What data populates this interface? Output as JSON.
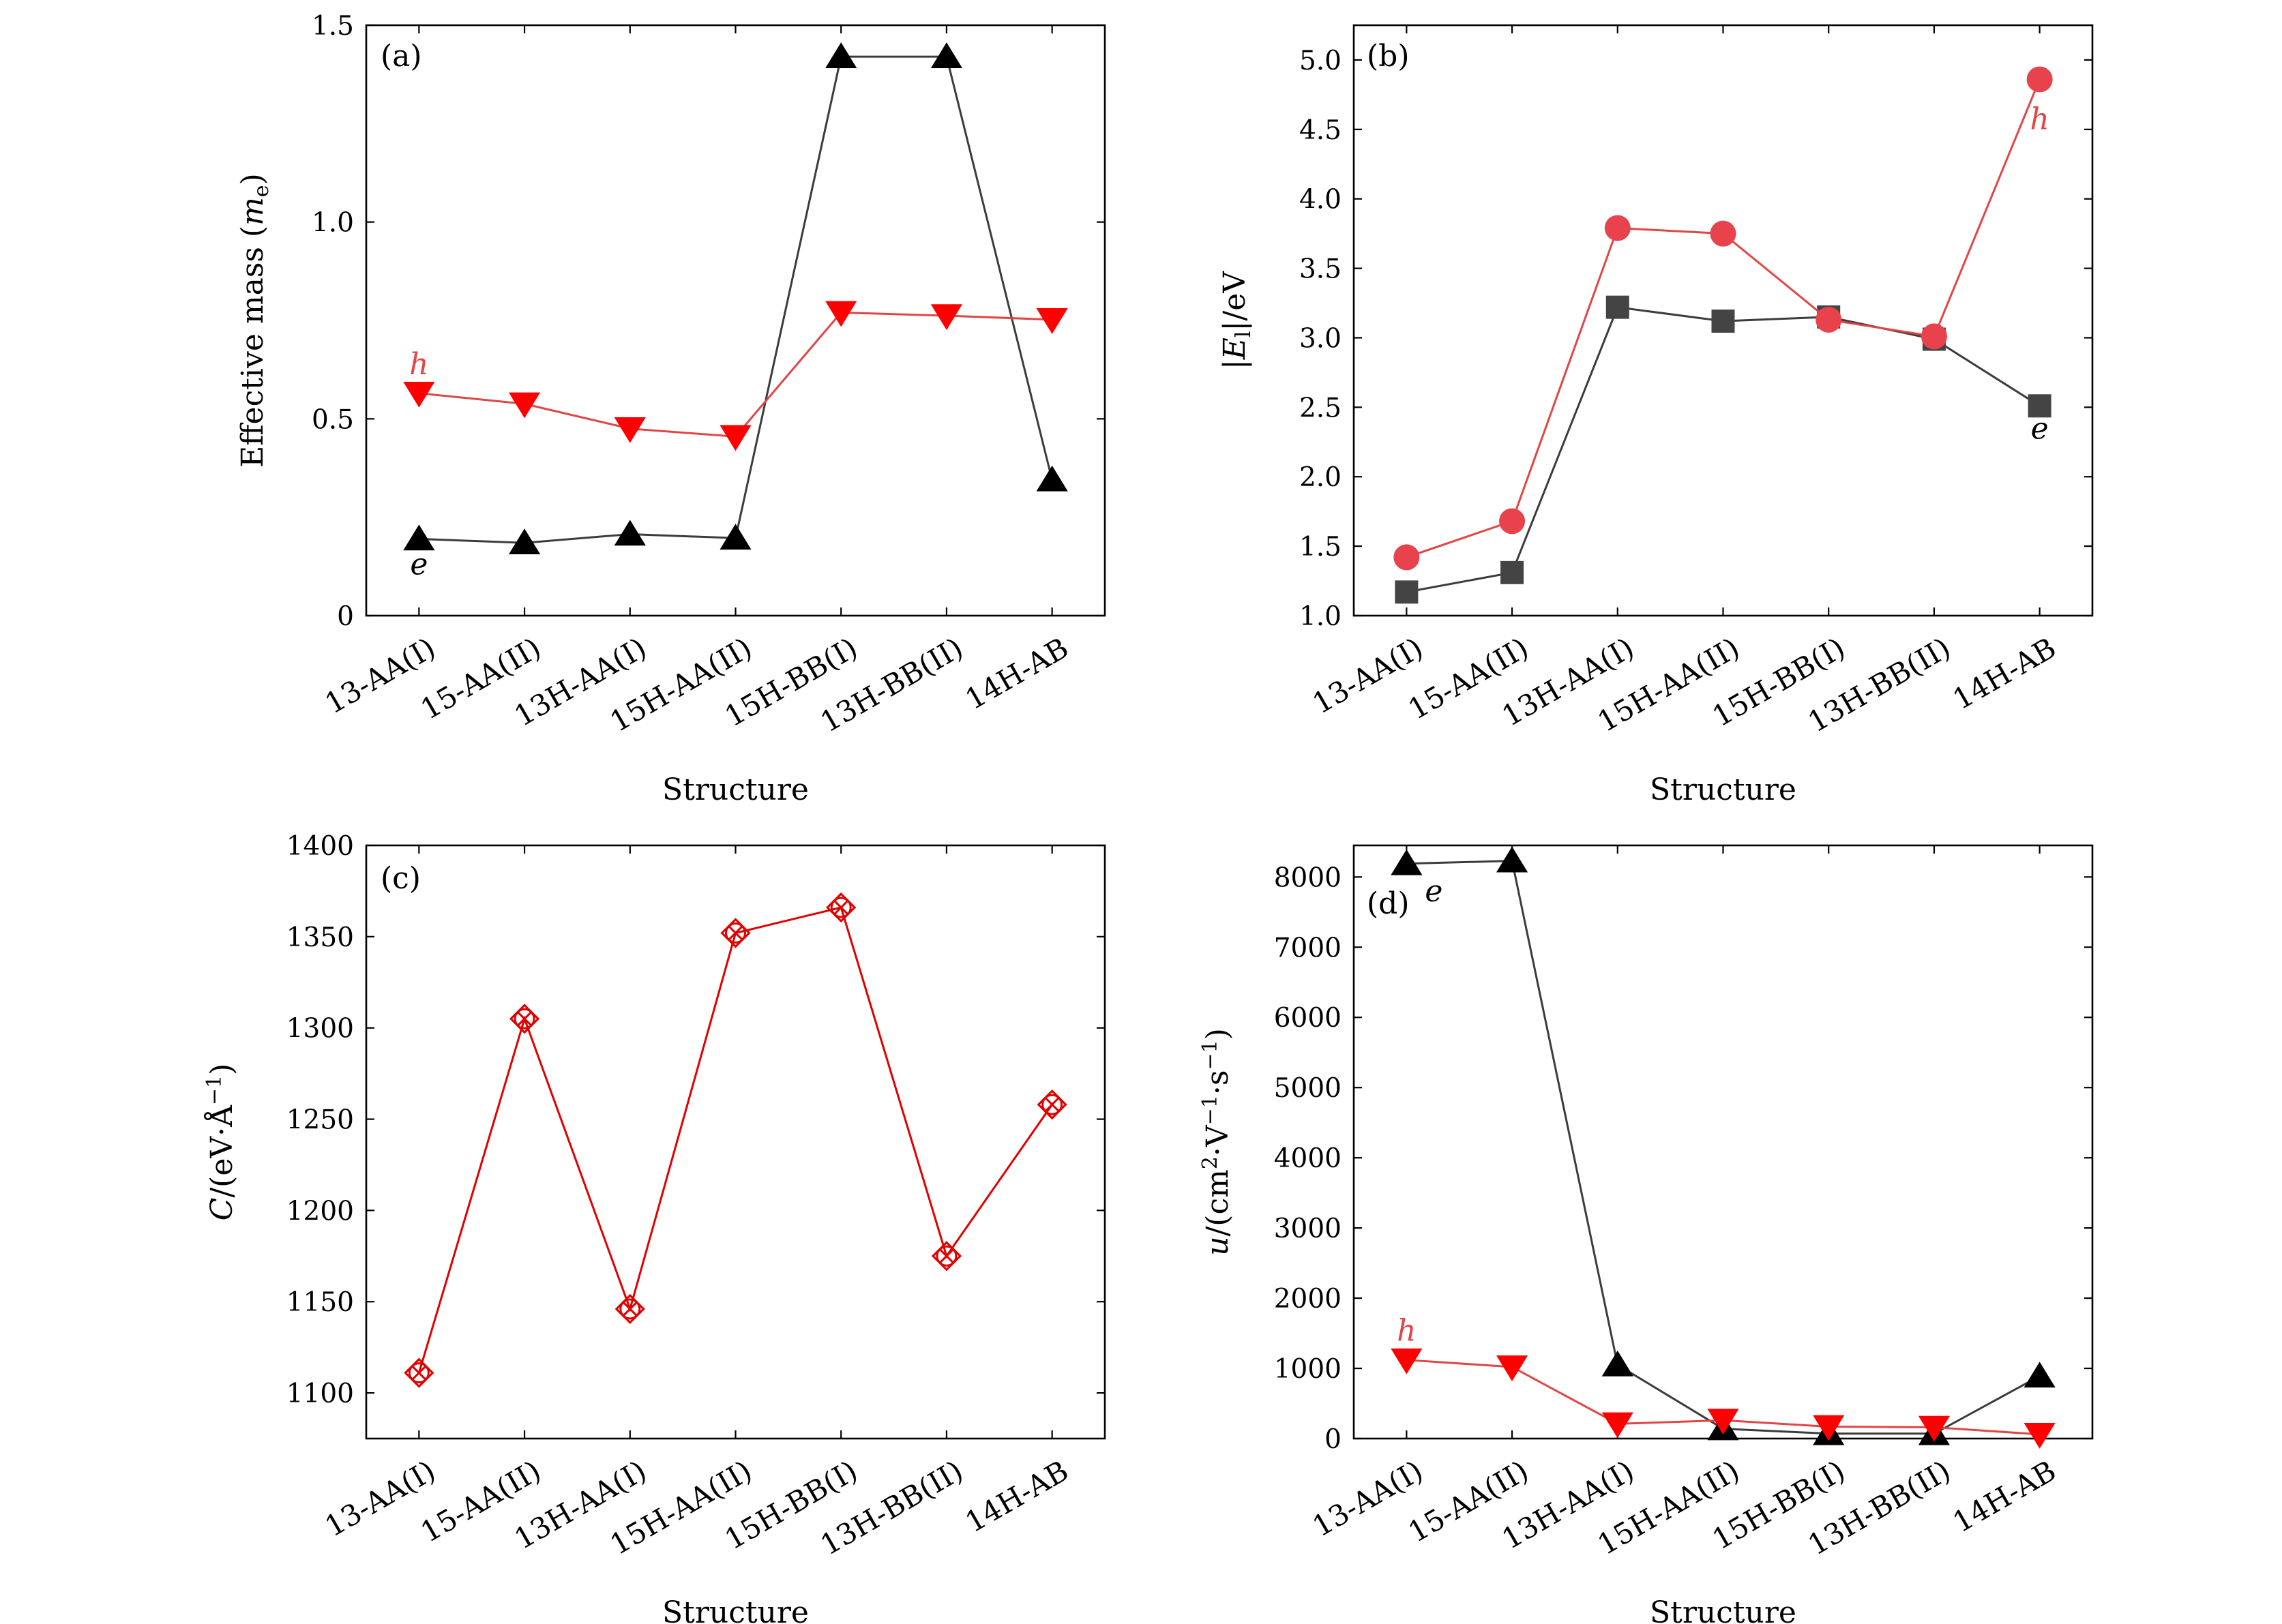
{
  "chart_data": [
    {
      "type": "line",
      "panel": "(a)",
      "categories": [
        "13-AA(I)",
        "15-AA(II)",
        "13H-AA(I)",
        "15H-AA(II)",
        "15H-BB(I)",
        "13H-BB(II)",
        "14H-AB"
      ],
      "xlabel": "Structure",
      "ylabel": "Effective mass (m_e)",
      "ylabel_parts": {
        "main": "Effective mass (",
        "var": "m",
        "sub": "e",
        "close": ")"
      },
      "ylim": [
        0,
        1.5
      ],
      "yticks": [
        0,
        0.5,
        1.0,
        1.5
      ],
      "ytick_labels": [
        "0",
        "0.5",
        "1.0",
        "1.5"
      ],
      "grid": false,
      "series": [
        {
          "name": "e",
          "color": "#3c3c3c",
          "marker": "triangle-up",
          "marker_color": "#000000",
          "values": [
            0.195,
            0.185,
            0.207,
            0.197,
            1.42,
            1.42,
            0.345
          ]
        },
        {
          "name": "h",
          "color": "#e04646",
          "marker": "triangle-down",
          "marker_color": "#ff0000",
          "values": [
            0.565,
            0.538,
            0.475,
            0.455,
            0.77,
            0.762,
            0.752
          ]
        }
      ]
    },
    {
      "type": "line",
      "panel": "(b)",
      "categories": [
        "13-AA(I)",
        "15-AA(II)",
        "13H-AA(I)",
        "15H-AA(II)",
        "15H-BB(I)",
        "13H-BB(II)",
        "14H-AB"
      ],
      "xlabel": "Structure",
      "ylabel": "|E_l|/eV",
      "ylabel_parts": {
        "pre": "|",
        "var": "E",
        "sub": "l",
        "post": "|/eV"
      },
      "ylim": [
        1.0,
        5.25
      ],
      "yticks": [
        1.0,
        1.5,
        2.0,
        2.5,
        3.0,
        3.5,
        4.0,
        4.5,
        5.0
      ],
      "ytick_labels": [
        "1.0",
        "1.5",
        "2.0",
        "2.5",
        "3.0",
        "3.5",
        "4.0",
        "4.5",
        "5.0"
      ],
      "grid": false,
      "series": [
        {
          "name": "e",
          "color": "#3c3c3c",
          "marker": "square",
          "marker_color": "#444444",
          "values": [
            1.17,
            1.31,
            3.22,
            3.12,
            3.15,
            2.99,
            2.51
          ]
        },
        {
          "name": "h",
          "color": "#e04646",
          "marker": "circle",
          "marker_color": "#e8434d",
          "values": [
            1.42,
            1.68,
            3.79,
            3.75,
            3.13,
            3.01,
            4.86
          ]
        }
      ]
    },
    {
      "type": "line",
      "panel": "(c)",
      "categories": [
        "13-AA(I)",
        "15-AA(II)",
        "13H-AA(I)",
        "15H-AA(II)",
        "15H-BB(I)",
        "13H-BB(II)",
        "14H-AB"
      ],
      "xlabel": "Structure",
      "ylabel": "C/(eV·Å^-1)",
      "ylabel_parts": {
        "var": "C",
        "main": "/(eV·Å",
        "sup": "−1",
        "close": ")"
      },
      "ylim": [
        1075,
        1400
      ],
      "yticks": [
        1100,
        1150,
        1200,
        1250,
        1300,
        1350,
        1400
      ],
      "ytick_labels": [
        "1100",
        "1150",
        "1200",
        "1250",
        "1300",
        "1350",
        "1400"
      ],
      "grid": false,
      "series": [
        {
          "color": "#e00000",
          "marker": "crossed-diamond",
          "marker_color": "#e00000",
          "values": [
            1111,
            1305,
            1146,
            1352,
            1366,
            1175,
            1258
          ]
        }
      ]
    },
    {
      "type": "line",
      "panel": "(d)",
      "categories": [
        "13-AA(I)",
        "15-AA(II)",
        "13H-AA(I)",
        "15H-AA(II)",
        "15H-BB(I)",
        "13H-BB(II)",
        "14H-AB"
      ],
      "xlabel": "Structure",
      "ylabel": "u/(cm^2·V^-1·s^-1)",
      "ylabel_parts": {
        "var": "u",
        "p1": "/(cm",
        "s1": "2",
        "p2": "·V",
        "s2": "−1",
        "p3": "·s",
        "s3": "−1",
        "p4": ")"
      },
      "ylim": [
        0,
        8450
      ],
      "yticks": [
        0,
        1000,
        2000,
        3000,
        4000,
        5000,
        6000,
        7000,
        8000
      ],
      "ytick_labels": [
        "0",
        "1000",
        "2000",
        "3000",
        "4000",
        "5000",
        "6000",
        "7000",
        "8000"
      ],
      "grid": false,
      "series": [
        {
          "name": "e",
          "color": "#3c3c3c",
          "marker": "triangle-up",
          "marker_color": "#000000",
          "values": [
            8190,
            8230,
            1050,
            140,
            70,
            70,
            890
          ]
        },
        {
          "name": "h",
          "color": "#e04646",
          "marker": "triangle-down",
          "marker_color": "#ff0000",
          "values": [
            1120,
            1020,
            210,
            260,
            170,
            160,
            60
          ]
        }
      ]
    }
  ]
}
